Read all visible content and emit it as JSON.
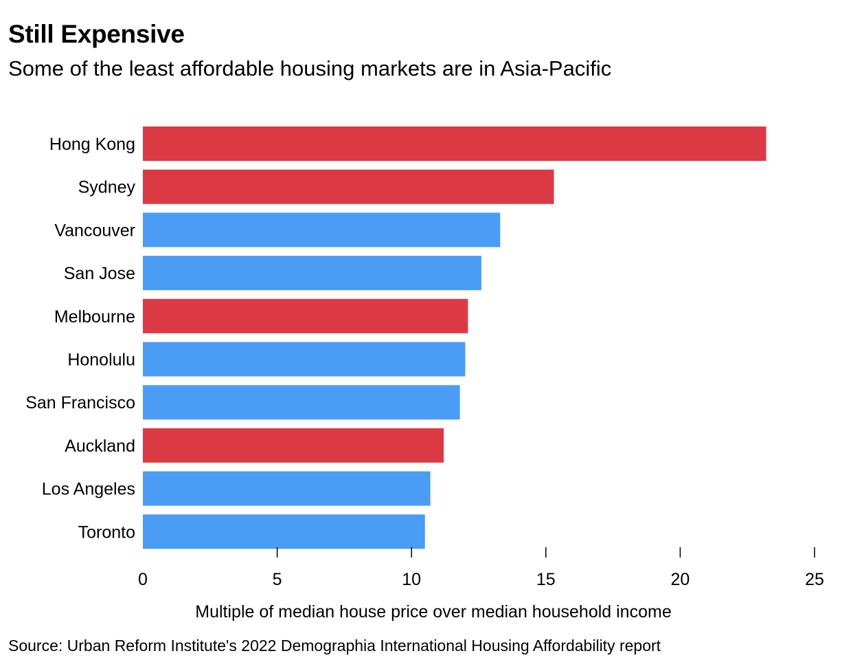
{
  "header": {
    "title": "Still Expensive",
    "subtitle": "Some of the least affordable housing markets are in Asia-Pacific"
  },
  "chart_data": {
    "type": "bar",
    "orientation": "horizontal",
    "categories": [
      "Hong Kong",
      "Sydney",
      "Vancouver",
      "San Jose",
      "Melbourne",
      "Honolulu",
      "San Francisco",
      "Auckland",
      "Los Angeles",
      "Toronto"
    ],
    "values": [
      23.2,
      15.3,
      13.3,
      12.6,
      12.1,
      12.0,
      11.8,
      11.2,
      10.7,
      10.5
    ],
    "region": [
      "Asia-Pacific",
      "Asia-Pacific",
      "North America",
      "North America",
      "Asia-Pacific",
      "North America",
      "North America",
      "Asia-Pacific",
      "North America",
      "North America"
    ],
    "colors": {
      "Asia-Pacific": "#db3a45",
      "North America": "#4a9cf5"
    },
    "title": "",
    "xlabel": "Multiple of median house price over median household income",
    "ylabel": "",
    "xlim": [
      0,
      25
    ],
    "xticks": [
      0,
      5,
      10,
      15,
      20,
      25
    ],
    "grid": false,
    "legend": "none"
  },
  "footer": {
    "source": "Source: Urban Reform Institute's 2022 Demographia International Housing Affordability report"
  }
}
